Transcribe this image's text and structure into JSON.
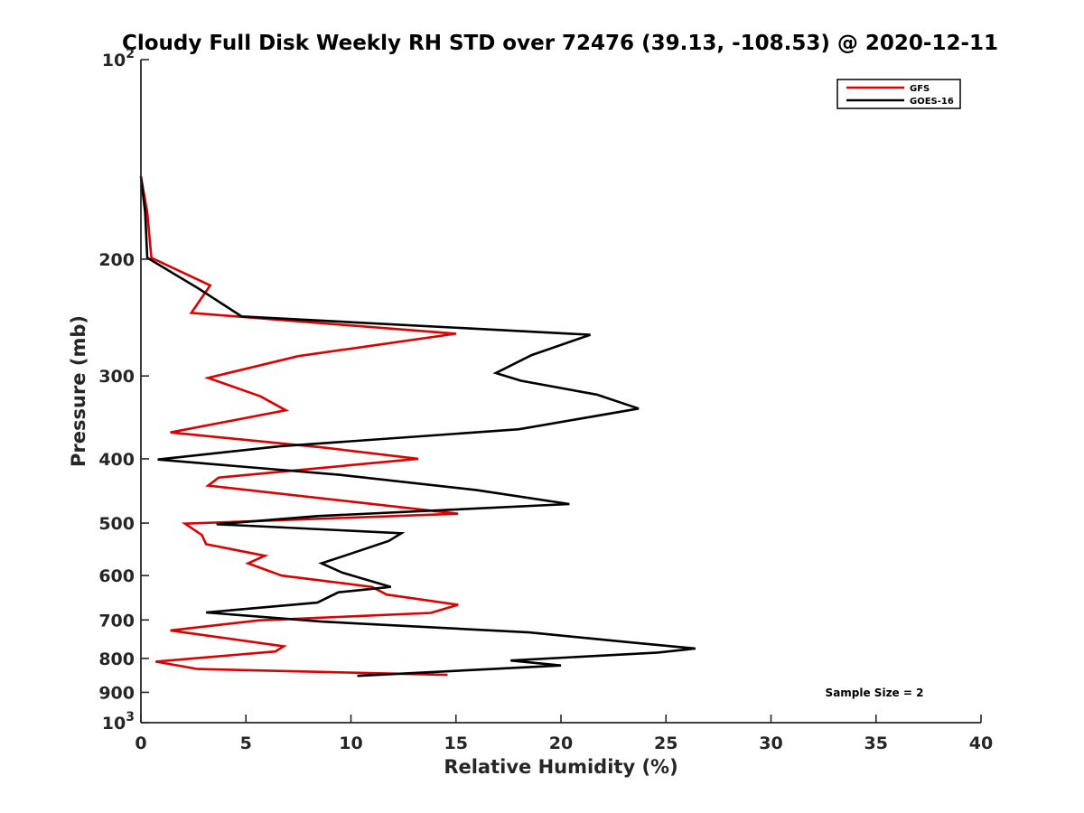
{
  "chart_data": {
    "type": "line",
    "title": "Cloudy Full Disk Weekly RH STD over 72476 (39.13, -108.53) @ 2020-12-11",
    "xlabel": "Relative Humidity (%)",
    "ylabel": "Pressure (mb)",
    "xlim": [
      0,
      40
    ],
    "ylim": [
      100,
      1000
    ],
    "yscale": "log",
    "y_reversed": true,
    "x_ticks": [
      0,
      5,
      10,
      15,
      20,
      25,
      30,
      35,
      40
    ],
    "x_tick_labels": [
      "0",
      "5",
      "10",
      "15",
      "20",
      "25",
      "30",
      "35",
      "40"
    ],
    "y_ticks": [
      100,
      200,
      300,
      400,
      500,
      600,
      700,
      800,
      900,
      1000
    ],
    "y_tick_labels": [
      {
        "base": "10",
        "exp": "2"
      },
      {
        "base": "200",
        "exp": ""
      },
      {
        "base": "300",
        "exp": ""
      },
      {
        "base": "400",
        "exp": ""
      },
      {
        "base": "500",
        "exp": ""
      },
      {
        "base": "600",
        "exp": ""
      },
      {
        "base": "700",
        "exp": ""
      },
      {
        "base": "800",
        "exp": ""
      },
      {
        "base": "900",
        "exp": ""
      },
      {
        "base": "10",
        "exp": "3"
      }
    ],
    "grid": false,
    "legend_position": "top-right",
    "annotation": "Sample Size = 2",
    "series": [
      {
        "name": "GFS",
        "color": "#dd0000",
        "points": [
          [
            0.0,
            150
          ],
          [
            0.3,
            170
          ],
          [
            0.5,
            199
          ],
          [
            3.3,
            219
          ],
          [
            2.4,
            241
          ],
          [
            15.0,
            259
          ],
          [
            7.5,
            280
          ],
          [
            3.2,
            302
          ],
          [
            5.7,
            322
          ],
          [
            6.9,
            338
          ],
          [
            1.4,
            365
          ],
          [
            8.8,
            385
          ],
          [
            13.2,
            400
          ],
          [
            3.7,
            427
          ],
          [
            3.2,
            439
          ],
          [
            10.5,
            466
          ],
          [
            15.1,
            484
          ],
          [
            2.1,
            501
          ],
          [
            2.9,
            521
          ],
          [
            3.1,
            538
          ],
          [
            5.9,
            560
          ],
          [
            5.1,
            575
          ],
          [
            6.7,
            600
          ],
          [
            11.0,
            624
          ],
          [
            11.7,
            641
          ],
          [
            15.1,
            664
          ],
          [
            13.8,
            683
          ],
          [
            5.6,
            701
          ],
          [
            1.4,
            726
          ],
          [
            6.8,
            767
          ],
          [
            6.4,
            781
          ],
          [
            0.7,
            809
          ],
          [
            2.7,
            830
          ],
          [
            14.6,
            847
          ]
        ]
      },
      {
        "name": "GOES-16",
        "color": "#000000",
        "points": [
          [
            0.0,
            150
          ],
          [
            0.2,
            170
          ],
          [
            0.3,
            199
          ],
          [
            2.7,
            221
          ],
          [
            4.8,
            244
          ],
          [
            21.4,
            260
          ],
          [
            18.6,
            279
          ],
          [
            16.9,
            297
          ],
          [
            18.1,
            305
          ],
          [
            21.7,
            320
          ],
          [
            23.7,
            336
          ],
          [
            18.0,
            361
          ],
          [
            6.6,
            383
          ],
          [
            0.8,
            401
          ],
          [
            9.5,
            423
          ],
          [
            16.0,
            446
          ],
          [
            20.4,
            468
          ],
          [
            8.4,
            488
          ],
          [
            3.6,
            502
          ],
          [
            12.4,
            518
          ],
          [
            11.8,
            532
          ],
          [
            9.7,
            560
          ],
          [
            8.6,
            575
          ],
          [
            9.6,
            594
          ],
          [
            11.9,
            624
          ],
          [
            9.4,
            636
          ],
          [
            8.4,
            659
          ],
          [
            3.1,
            682
          ],
          [
            8.6,
            704
          ],
          [
            18.5,
            731
          ],
          [
            23.4,
            757
          ],
          [
            26.4,
            773
          ],
          [
            24.6,
            784
          ],
          [
            17.6,
            806
          ],
          [
            20.0,
            820
          ],
          [
            10.3,
            850
          ]
        ]
      }
    ]
  }
}
